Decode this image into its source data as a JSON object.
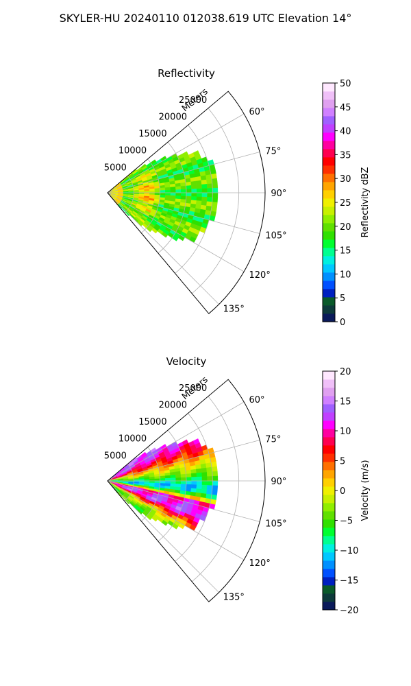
{
  "figure": {
    "title": "SKYLER-HU  20240110  012038.619 UTC Elevation 14°"
  },
  "chart_data": [
    {
      "type": "heatmap",
      "projection": "polar-sector",
      "title": "Reflectivity",
      "range_label": "Meters",
      "range_ticks": [
        5000,
        10000,
        15000,
        20000,
        25000
      ],
      "range_tick_labels": [
        "5000",
        "10000",
        "15000",
        "20000",
        "25000"
      ],
      "range_max": 30000,
      "theta_ticks": [
        60,
        75,
        90,
        105,
        120,
        135
      ],
      "theta_tick_labels": [
        "60°",
        "75°",
        "90°",
        "105°",
        "120°",
        "135°"
      ],
      "theta_range": [
        50,
        140
      ],
      "grid": true,
      "field_description": "approximate: values mostly 15-25 dBZ with a 25-35 dBZ ring near 5000-10000 m",
      "colorbar": {
        "label": "Reflectivity dBZ",
        "range": [
          0,
          50
        ],
        "ticks": [
          0,
          5,
          10,
          15,
          20,
          25,
          30,
          35,
          40,
          45,
          50
        ],
        "tick_labels": [
          "0",
          "5",
          "10",
          "15",
          "20",
          "25",
          "30",
          "35",
          "40",
          "45",
          "50"
        ],
        "colors": [
          "#0a1a5a",
          "#0d3a3a",
          "#0a5a2a",
          "#0020c0",
          "#0050ff",
          "#0090ff",
          "#00c8ff",
          "#00f0e0",
          "#00ff90",
          "#00ff30",
          "#30e000",
          "#60e000",
          "#90ee00",
          "#c8f000",
          "#f0f000",
          "#ffd000",
          "#ffa500",
          "#ff7000",
          "#ff3000",
          "#ff0000",
          "#ff0050",
          "#ff00a0",
          "#ff00ff",
          "#c040ff",
          "#a060ff",
          "#d080ff",
          "#e0a0f0",
          "#f0c0f8",
          "#ffe8ff"
        ]
      }
    },
    {
      "type": "heatmap",
      "projection": "polar-sector",
      "title": "Velocity",
      "range_label": "Meters",
      "range_ticks": [
        5000,
        10000,
        15000,
        20000,
        25000
      ],
      "range_tick_labels": [
        "5000",
        "10000",
        "15000",
        "20000",
        "25000"
      ],
      "range_max": 30000,
      "theta_ticks": [
        60,
        75,
        90,
        105,
        120,
        135
      ],
      "theta_tick_labels": [
        "60°",
        "75°",
        "90°",
        "105°",
        "120°",
        "135°"
      ],
      "theta_range": [
        50,
        140
      ],
      "grid": true,
      "field_description": "approximate: about +10 to +20 m/s near 60-75°, -5 to -15 m/s near 85-100°, +10 to +15 m/s near 100-115°, about 0 to -5 m/s near 120-130°",
      "colorbar": {
        "label": "Velocity (m/s)",
        "range": [
          -20,
          20
        ],
        "ticks": [
          -20,
          -15,
          -10,
          -5,
          0,
          5,
          10,
          15,
          20
        ],
        "tick_labels": [
          "−20",
          "−15",
          "−10",
          "−5",
          "0",
          "5",
          "10",
          "15",
          "20"
        ],
        "colors": [
          "#0a1a5a",
          "#0d3a3a",
          "#0a5a2a",
          "#0020c0",
          "#0050ff",
          "#0090ff",
          "#00c8ff",
          "#00f0e0",
          "#00ff90",
          "#00ff30",
          "#30e000",
          "#60e000",
          "#90ee00",
          "#c8f000",
          "#f0f000",
          "#ffd000",
          "#ffa500",
          "#ff7000",
          "#ff3000",
          "#ff0000",
          "#ff0050",
          "#ff00a0",
          "#ff00ff",
          "#c040ff",
          "#a060ff",
          "#d080ff",
          "#e0a0f0",
          "#f0c0f8",
          "#ffe8ff"
        ]
      }
    }
  ]
}
